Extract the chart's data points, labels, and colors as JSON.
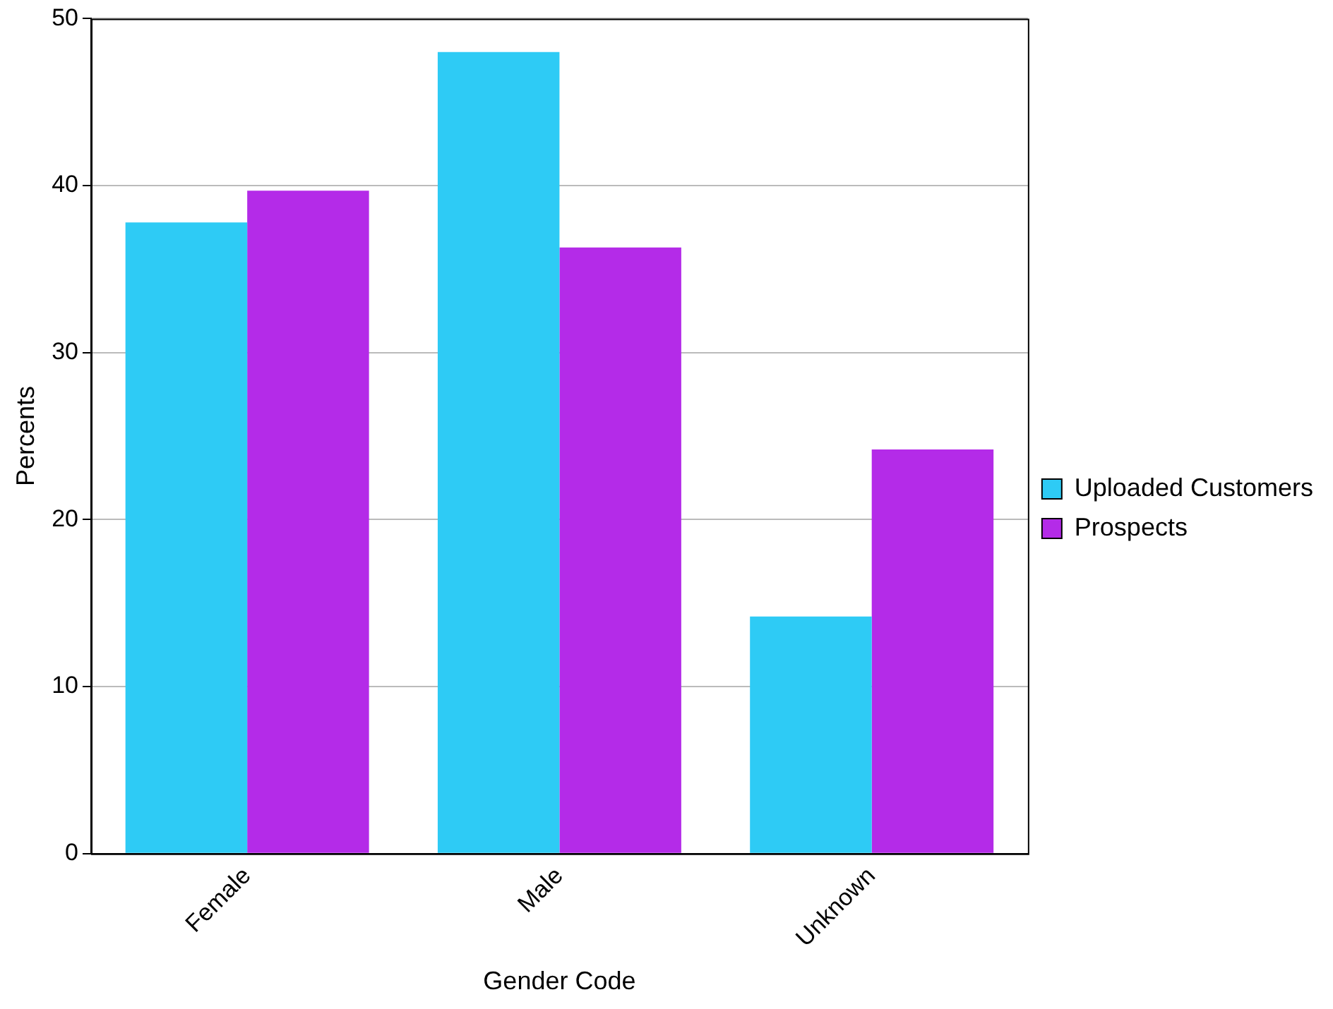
{
  "chart_data": {
    "type": "bar",
    "xlabel": "Gender Code",
    "ylabel": "Percents",
    "categories": [
      "Female",
      "Male",
      "Unknown"
    ],
    "series": [
      {
        "name": "Uploaded Customers",
        "color": "#2ecbf5",
        "values": [
          37.8,
          48.0,
          14.2
        ]
      },
      {
        "name": "Prospects",
        "color": "#b42be8",
        "values": [
          39.7,
          36.3,
          24.2
        ]
      }
    ],
    "ylim": [
      0,
      50
    ],
    "yticks": [
      0,
      10,
      20,
      30,
      40,
      50
    ],
    "grid": "y",
    "legend": "right"
  }
}
